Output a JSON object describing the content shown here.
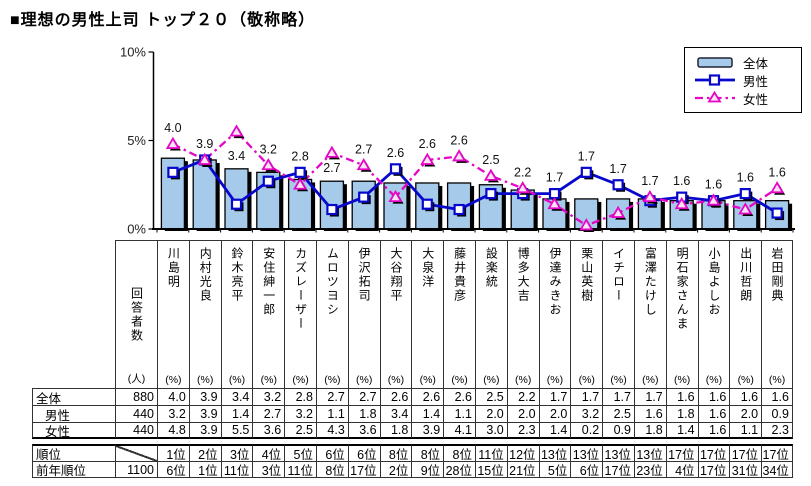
{
  "title": "■理想の男性上司 トップ２０（敬称略）",
  "names": [
    "川島明",
    "内村光良",
    "鈴木亮平",
    "安住紳一郎",
    "カズレーザー",
    "ムロツヨシ",
    "伊沢拓司",
    "大谷翔平",
    "大泉洋",
    "藤井貴彦",
    "設楽統",
    "博多大吉",
    "伊達みきお",
    "栗山英樹",
    "イチロー",
    "富澤たけし",
    "明石家さんま",
    "小島よしお",
    "出川哲朗",
    "岩田剛典"
  ],
  "legend": {
    "items": [
      {
        "label": "全体",
        "swatch": "bar",
        "color": "#A6CAEA"
      },
      {
        "label": "男性",
        "swatch": "line-square",
        "color": "#0808CC"
      },
      {
        "label": "女性",
        "swatch": "line-triangle",
        "color": "#E606C6"
      }
    ]
  },
  "chart_data": {
    "type": "bar+line combo",
    "categories": [
      "川島明",
      "内村光良",
      "鈴木亮平",
      "安住紳一郎",
      "カズレーザー",
      "ムロツヨシ",
      "伊沢拓司",
      "大谷翔平",
      "大泉洋",
      "藤井貴彦",
      "設楽統",
      "博多大吉",
      "伊達みきお",
      "栗山英樹",
      "イチロー",
      "富澤たけし",
      "明石家さんま",
      "小島よしお",
      "出川哲朗",
      "岩田剛典"
    ],
    "series": [
      {
        "name": "全体",
        "type": "bar",
        "color": "#A6CAEA",
        "values": [
          4.0,
          3.9,
          3.4,
          3.2,
          2.8,
          2.7,
          2.7,
          2.6,
          2.6,
          2.6,
          2.5,
          2.2,
          1.7,
          1.7,
          1.7,
          1.7,
          1.6,
          1.6,
          1.6,
          1.6
        ]
      },
      {
        "name": "男性",
        "type": "line",
        "marker": "square",
        "color": "#0808CC",
        "values": [
          3.2,
          3.9,
          1.4,
          2.7,
          3.2,
          1.1,
          1.8,
          3.4,
          1.4,
          1.1,
          2.0,
          2.0,
          2.0,
          3.2,
          2.5,
          1.6,
          1.8,
          1.6,
          2.0,
          0.9
        ]
      },
      {
        "name": "女性",
        "type": "line",
        "marker": "triangle",
        "dashed": true,
        "color": "#E606C6",
        "values": [
          4.8,
          3.9,
          5.5,
          3.6,
          2.5,
          4.3,
          3.6,
          1.8,
          3.9,
          4.1,
          3.0,
          2.3,
          1.4,
          0.2,
          0.9,
          1.8,
          1.4,
          1.6,
          1.1,
          2.3
        ]
      }
    ],
    "ylim": [
      0,
      10
    ],
    "yticks": [
      "0%",
      "5%",
      "10%"
    ],
    "grid": false,
    "legend_position": "top-right",
    "bar_labels_shown": true
  },
  "table": {
    "corner_header": "回答者数",
    "corner_unit": "(人)",
    "col_unit": "(%)",
    "rows": [
      {
        "label": "全体",
        "indent": false,
        "count": "880",
        "slash": false,
        "values": [
          "4.0",
          "3.9",
          "3.4",
          "3.2",
          "2.8",
          "2.7",
          "2.7",
          "2.6",
          "2.6",
          "2.6",
          "2.5",
          "2.2",
          "1.7",
          "1.7",
          "1.7",
          "1.7",
          "1.6",
          "1.6",
          "1.6",
          "1.6"
        ]
      },
      {
        "label": "男性",
        "indent": true,
        "count": "440",
        "slash": false,
        "values": [
          "3.2",
          "3.9",
          "1.4",
          "2.7",
          "3.2",
          "1.1",
          "1.8",
          "3.4",
          "1.4",
          "1.1",
          "2.0",
          "2.0",
          "2.0",
          "3.2",
          "2.5",
          "1.6",
          "1.8",
          "1.6",
          "2.0",
          "0.9"
        ]
      },
      {
        "label": "女性",
        "indent": true,
        "count": "440",
        "slash": false,
        "values": [
          "4.8",
          "3.9",
          "5.5",
          "3.6",
          "2.5",
          "4.3",
          "3.6",
          "1.8",
          "3.9",
          "4.1",
          "3.0",
          "2.3",
          "1.4",
          "0.2",
          "0.9",
          "1.8",
          "1.4",
          "1.6",
          "1.1",
          "2.3"
        ]
      },
      {
        "label": "順位",
        "indent": false,
        "count": "",
        "slash": true,
        "values": [
          "1位",
          "2位",
          "3位",
          "4位",
          "5位",
          "6位",
          "6位",
          "8位",
          "8位",
          "8位",
          "11位",
          "12位",
          "13位",
          "13位",
          "13位",
          "13位",
          "17位",
          "17位",
          "17位",
          "17位"
        ]
      },
      {
        "label": "前年順位",
        "indent": false,
        "count": "1100",
        "slash": false,
        "values": [
          "6位",
          "1位",
          "11位",
          "3位",
          "11位",
          "8位",
          "17位",
          "2位",
          "9位",
          "28位",
          "15位",
          "21位",
          "5位",
          "6位",
          "17位",
          "23位",
          "4位",
          "17位",
          "31位",
          "34位"
        ]
      }
    ]
  }
}
